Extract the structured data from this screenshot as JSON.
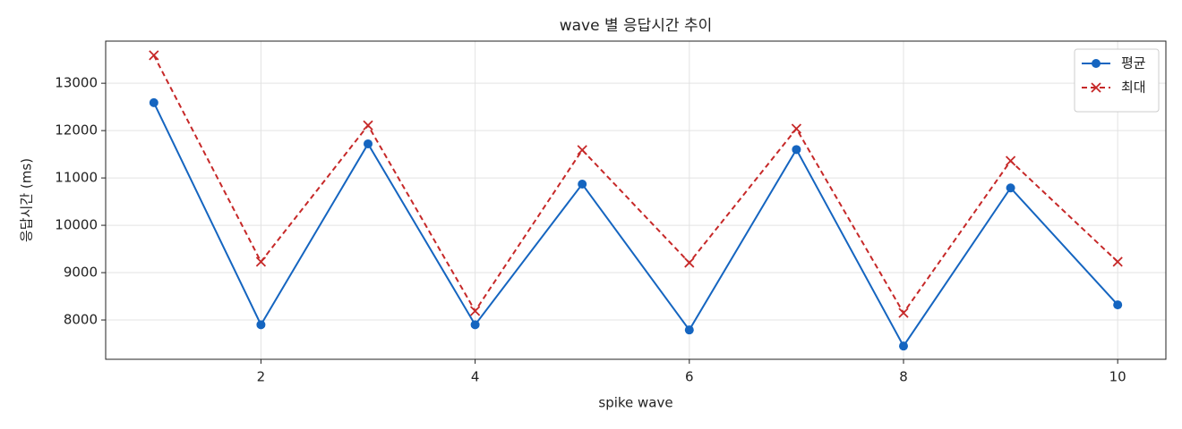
{
  "chart_data": {
    "type": "line",
    "title": "wave 별 응답시간 추이",
    "x_label": "spike wave",
    "y_label": "응답시간 (ms)",
    "x": [
      1,
      2,
      3,
      4,
      5,
      6,
      7,
      8,
      9,
      10
    ],
    "series": [
      {
        "name": "평균",
        "color": "#1565c0",
        "linestyle": "solid",
        "marker": "o",
        "values": [
          12590,
          7900,
          11720,
          7900,
          10870,
          7790,
          11600,
          7450,
          10790,
          8320
        ]
      },
      {
        "name": "최대",
        "color": "#c62828",
        "linestyle": "dashed",
        "marker": "x",
        "values": [
          13590,
          9230,
          12110,
          8190,
          11590,
          9210,
          12040,
          8150,
          11360,
          9230
        ]
      }
    ],
    "xlim": [
      0.55,
      10.45
    ],
    "ylim": [
      7170,
      13890
    ],
    "xticks": [
      2,
      4,
      6,
      8,
      10
    ],
    "yticks": [
      8000,
      9000,
      10000,
      11000,
      12000,
      13000
    ],
    "grid": true,
    "legend": "upper right"
  }
}
